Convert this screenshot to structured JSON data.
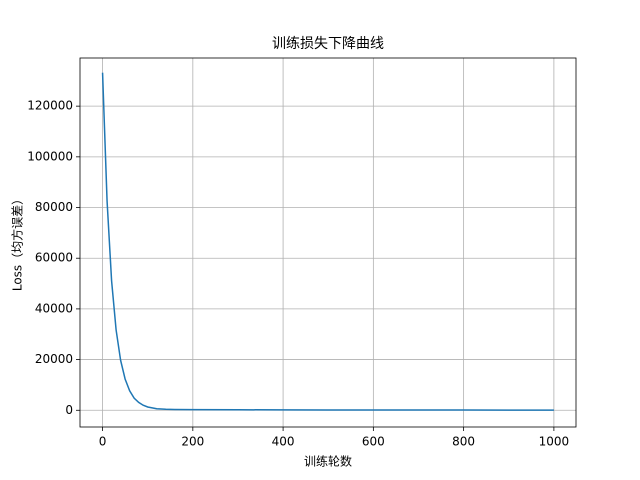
{
  "chart_data": {
    "type": "line",
    "title": "训练损失下降曲线",
    "xlabel": "训练轮数",
    "ylabel": "Loss（均方误差）",
    "x": [
      0,
      10,
      20,
      30,
      40,
      50,
      60,
      70,
      80,
      90,
      100,
      120,
      140,
      160,
      200,
      300,
      400,
      500,
      600,
      700,
      800,
      900,
      1000
    ],
    "values": [
      133200,
      82500,
      51100,
      31700,
      19700,
      12300,
      7700,
      4800,
      3100,
      2000,
      1300,
      600,
      400,
      300,
      250,
      200,
      150,
      130,
      110,
      100,
      90,
      80,
      70
    ],
    "color": "#1f77b4",
    "xlim": [
      -50,
      1049
    ],
    "xticks": [
      0,
      200,
      400,
      600,
      800,
      1000
    ],
    "ylim": [
      -6600,
      139000
    ],
    "yticks": [
      0,
      20000,
      40000,
      60000,
      80000,
      100000,
      120000
    ],
    "grid": true
  }
}
